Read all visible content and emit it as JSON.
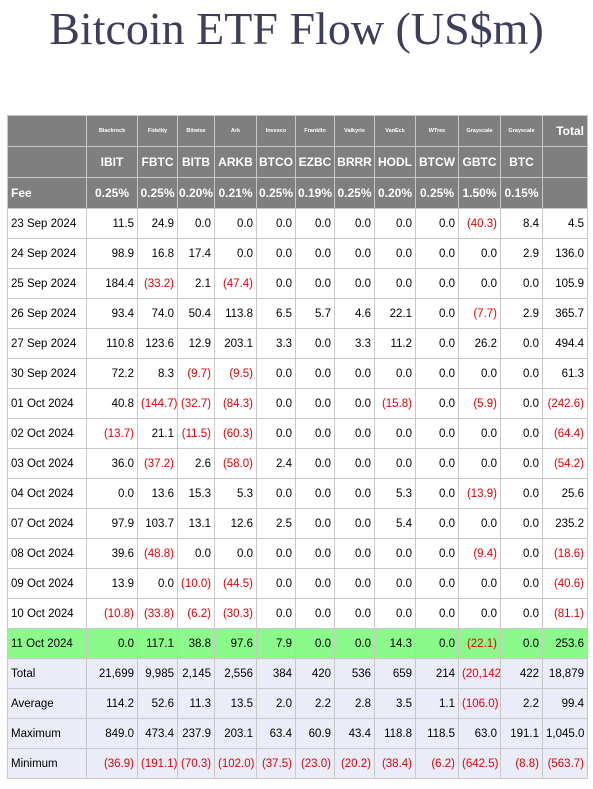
{
  "page": {
    "title": "Bitcoin ETF Flow (US$m)"
  },
  "table": {
    "issuers": [
      "Blackrock",
      "Fidelity",
      "Bitwise",
      "Ark",
      "Invesco",
      "Franklin",
      "Valkyrie",
      "VanEck",
      "WTree",
      "Grayscale",
      "Grayscale"
    ],
    "total_label": "Total",
    "tickers": [
      "IBIT",
      "FBTC",
      "BITB",
      "ARKB",
      "BTCO",
      "EZBC",
      "BRRR",
      "HODL",
      "BTCW",
      "GBTC",
      "BTC"
    ],
    "fee_label": "Fee",
    "fees": [
      "0.25%",
      "0.25%",
      "0.20%",
      "0.21%",
      "0.25%",
      "0.19%",
      "0.25%",
      "0.20%",
      "0.25%",
      "1.50%",
      "0.15%"
    ],
    "rows": [
      {
        "date": "23 Sep 2024",
        "values": [
          "11.5",
          "24.9",
          "0.0",
          "0.0",
          "0.0",
          "0.0",
          "0.0",
          "0.0",
          "0.0",
          "(40.3)",
          "8.4"
        ],
        "total": "4.5"
      },
      {
        "date": "24 Sep 2024",
        "values": [
          "98.9",
          "16.8",
          "17.4",
          "0.0",
          "0.0",
          "0.0",
          "0.0",
          "0.0",
          "0.0",
          "0.0",
          "2.9"
        ],
        "total": "136.0"
      },
      {
        "date": "25 Sep 2024",
        "values": [
          "184.4",
          "(33.2)",
          "2.1",
          "(47.4)",
          "0.0",
          "0.0",
          "0.0",
          "0.0",
          "0.0",
          "0.0",
          "0.0"
        ],
        "total": "105.9"
      },
      {
        "date": "26 Sep 2024",
        "values": [
          "93.4",
          "74.0",
          "50.4",
          "113.8",
          "6.5",
          "5.7",
          "4.6",
          "22.1",
          "0.0",
          "(7.7)",
          "2.9"
        ],
        "total": "365.7"
      },
      {
        "date": "27 Sep 2024",
        "values": [
          "110.8",
          "123.6",
          "12.9",
          "203.1",
          "3.3",
          "0.0",
          "3.3",
          "11.2",
          "0.0",
          "26.2",
          "0.0"
        ],
        "total": "494.4"
      },
      {
        "date": "30 Sep 2024",
        "values": [
          "72.2",
          "8.3",
          "(9.7)",
          "(9.5)",
          "0.0",
          "0.0",
          "0.0",
          "0.0",
          "0.0",
          "0.0",
          "0.0"
        ],
        "total": "61.3"
      },
      {
        "date": "01 Oct 2024",
        "values": [
          "40.8",
          "(144.7)",
          "(32.7)",
          "(84.3)",
          "0.0",
          "0.0",
          "0.0",
          "(15.8)",
          "0.0",
          "(5.9)",
          "0.0"
        ],
        "total": "(242.6)"
      },
      {
        "date": "02 Oct 2024",
        "values": [
          "(13.7)",
          "21.1",
          "(11.5)",
          "(60.3)",
          "0.0",
          "0.0",
          "0.0",
          "0.0",
          "0.0",
          "0.0",
          "0.0"
        ],
        "total": "(64.4)"
      },
      {
        "date": "03 Oct 2024",
        "values": [
          "36.0",
          "(37.2)",
          "2.6",
          "(58.0)",
          "2.4",
          "0.0",
          "0.0",
          "0.0",
          "0.0",
          "0.0",
          "0.0"
        ],
        "total": "(54.2)"
      },
      {
        "date": "04 Oct 2024",
        "values": [
          "0.0",
          "13.6",
          "15.3",
          "5.3",
          "0.0",
          "0.0",
          "0.0",
          "5.3",
          "0.0",
          "(13.9)",
          "0.0"
        ],
        "total": "25.6"
      },
      {
        "date": "07 Oct 2024",
        "values": [
          "97.9",
          "103.7",
          "13.1",
          "12.6",
          "2.5",
          "0.0",
          "0.0",
          "5.4",
          "0.0",
          "0.0",
          "0.0"
        ],
        "total": "235.2"
      },
      {
        "date": "08 Oct 2024",
        "values": [
          "39.6",
          "(48.8)",
          "0.0",
          "0.0",
          "0.0",
          "0.0",
          "0.0",
          "0.0",
          "0.0",
          "(9.4)",
          "0.0"
        ],
        "total": "(18.6)"
      },
      {
        "date": "09 Oct 2024",
        "values": [
          "13.9",
          "0.0",
          "(10.0)",
          "(44.5)",
          "0.0",
          "0.0",
          "0.0",
          "0.0",
          "0.0",
          "0.0",
          "0.0"
        ],
        "total": "(40.6)"
      },
      {
        "date": "10 Oct 2024",
        "values": [
          "(10.8)",
          "(33.8)",
          "(6.2)",
          "(30.3)",
          "0.0",
          "0.0",
          "0.0",
          "0.0",
          "0.0",
          "0.0",
          "0.0"
        ],
        "total": "(81.1)"
      },
      {
        "date": "11 Oct 2024",
        "values": [
          "0.0",
          "117.1",
          "38.8",
          "97.6",
          "7.9",
          "0.0",
          "0.0",
          "14.3",
          "0.0",
          "(22.1)",
          "0.0"
        ],
        "total": "253.6",
        "highlight": true
      }
    ],
    "summary": [
      {
        "label": "Total",
        "values": [
          "21,699",
          "9,985",
          "2,145",
          "2,556",
          "384",
          "420",
          "536",
          "659",
          "214",
          "(20,142)",
          "422"
        ],
        "total": "18,879"
      },
      {
        "label": "Average",
        "values": [
          "114.2",
          "52.6",
          "11.3",
          "13.5",
          "2.0",
          "2.2",
          "2.8",
          "3.5",
          "1.1",
          "(106.0)",
          "2.2"
        ],
        "total": "99.4"
      },
      {
        "label": "Maximum",
        "values": [
          "849.0",
          "473.4",
          "237.9",
          "203.1",
          "63.4",
          "60.9",
          "43.4",
          "118.8",
          "118.5",
          "63.0",
          "191.1"
        ],
        "total": "1,045.0"
      },
      {
        "label": "Minimum",
        "values": [
          "(36.9)",
          "(191.1)",
          "(70.3)",
          "(102.0)",
          "(37.5)",
          "(23.0)",
          "(20.2)",
          "(38.4)",
          "(6.2)",
          "(642.5)",
          "(8.8)"
        ],
        "total": "(563.7)"
      }
    ],
    "colors": {
      "header_bg": "#7f7f7f",
      "negative": "#e00000",
      "highlight_row": "#8bfa8b",
      "summary_bg": "#eaedf7",
      "title": "#3d3f5a"
    }
  }
}
